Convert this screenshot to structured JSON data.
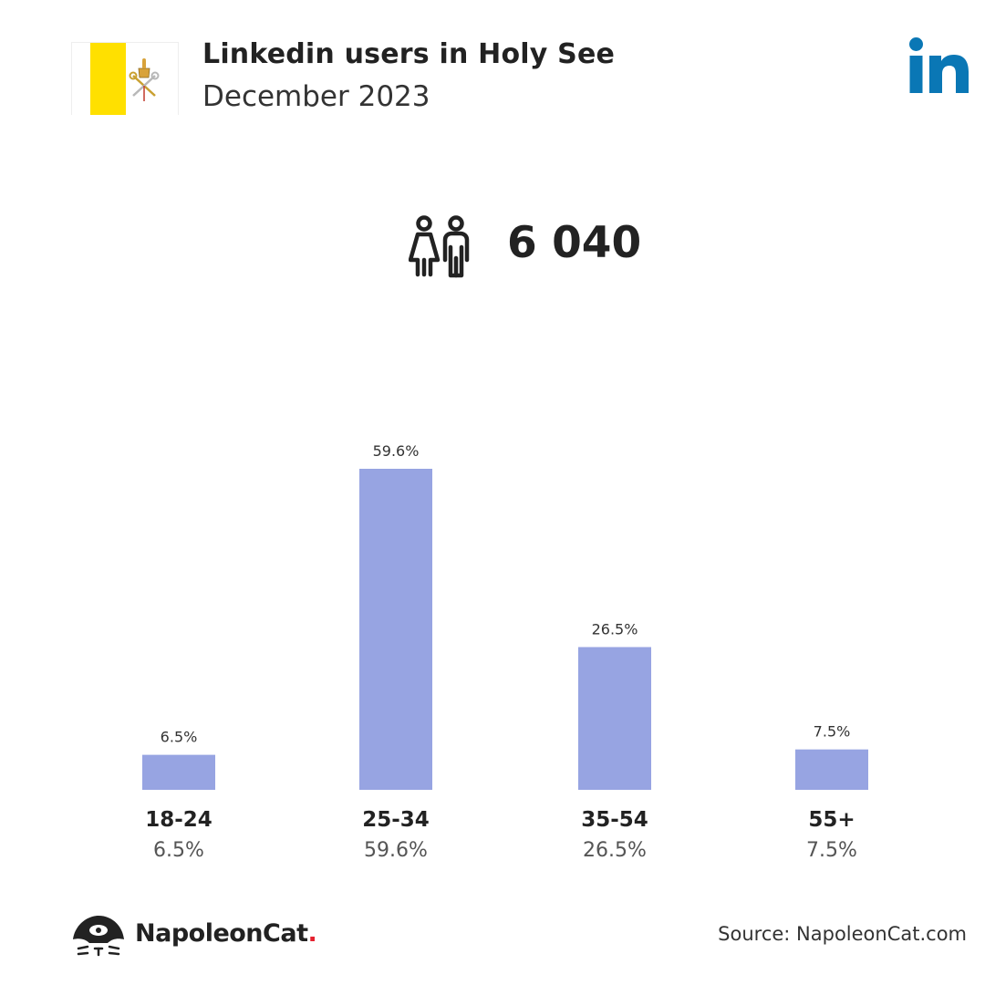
{
  "header": {
    "title": "Linkedin users in Holy See",
    "subtitle": "December 2023"
  },
  "icons": {
    "flag": "holy-see-flag-icon",
    "brand": "linkedin-logo-icon",
    "users": "users-icon",
    "footer": "napoleoncat-logo-icon"
  },
  "summary": {
    "total_users": "6 040"
  },
  "chart_data": {
    "type": "bar",
    "categories": [
      "18-24",
      "25-34",
      "35-54",
      "55+"
    ],
    "values": [
      6.5,
      59.6,
      26.5,
      7.5
    ],
    "data_labels": [
      "6.5%",
      "59.6%",
      "26.5%",
      "7.5%"
    ],
    "title": "",
    "xlabel": "",
    "ylabel": "",
    "ylim": [
      0,
      59.6
    ],
    "grid": false,
    "bar_color": "#97a4e2"
  },
  "colors": {
    "linkedin_blue": "#0a77b5",
    "bar": "#97a4e2",
    "flag_yellow": "#ffe000",
    "brand_dot": "#e5202e"
  },
  "footer": {
    "brand_name": "NapoleonCat",
    "brand_dot": ".",
    "source": "Source: NapoleonCat.com"
  }
}
